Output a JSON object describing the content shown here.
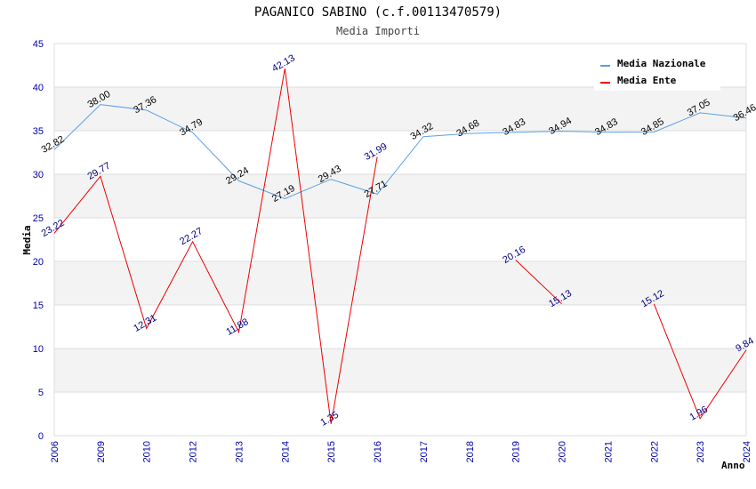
{
  "chart_data": {
    "type": "line",
    "title": "PAGANICO SABINO (c.f.00113470579)",
    "subtitle": "Media Importi",
    "xlabel": "Anno",
    "ylabel": "Media",
    "ylim": [
      0,
      45
    ],
    "yticks": [
      0,
      5,
      10,
      15,
      20,
      25,
      30,
      35,
      40,
      45
    ],
    "categories": [
      "2006",
      "2009",
      "2010",
      "2012",
      "2013",
      "2014",
      "2015",
      "2016",
      "2017",
      "2018",
      "2019",
      "2020",
      "2021",
      "2022",
      "2023",
      "2024"
    ],
    "series": [
      {
        "name": "Media Nazionale",
        "color": "#5aa0e6",
        "label_color": "#000000",
        "values": [
          32.82,
          38.0,
          37.36,
          34.79,
          29.24,
          27.19,
          29.43,
          27.71,
          34.32,
          34.68,
          34.83,
          34.94,
          34.83,
          34.85,
          37.05,
          36.46
        ],
        "labels": [
          "32.82",
          "38.00",
          "37.36",
          "34.79",
          "29.24",
          "27.19",
          "29.43",
          "27.71",
          "34.32",
          "34.68",
          "34.83",
          "34.94",
          "34.83",
          "34.85",
          "37.05",
          "36.46"
        ]
      },
      {
        "name": "Media Ente",
        "color": "#ee0000",
        "label_color": "#000080",
        "values": [
          23.22,
          29.77,
          12.31,
          22.27,
          11.88,
          42.13,
          1.35,
          31.99,
          null,
          null,
          20.16,
          15.13,
          null,
          15.12,
          1.96,
          9.84
        ],
        "labels": [
          "23.22",
          "29.77",
          "12.31",
          "22.27",
          "11.88",
          "42.13",
          "1.35",
          "31.99",
          null,
          null,
          "20.16",
          "15.13",
          null,
          "15.12",
          "1.96",
          "9.84"
        ]
      }
    ],
    "grid": true,
    "legend": "top-right"
  }
}
